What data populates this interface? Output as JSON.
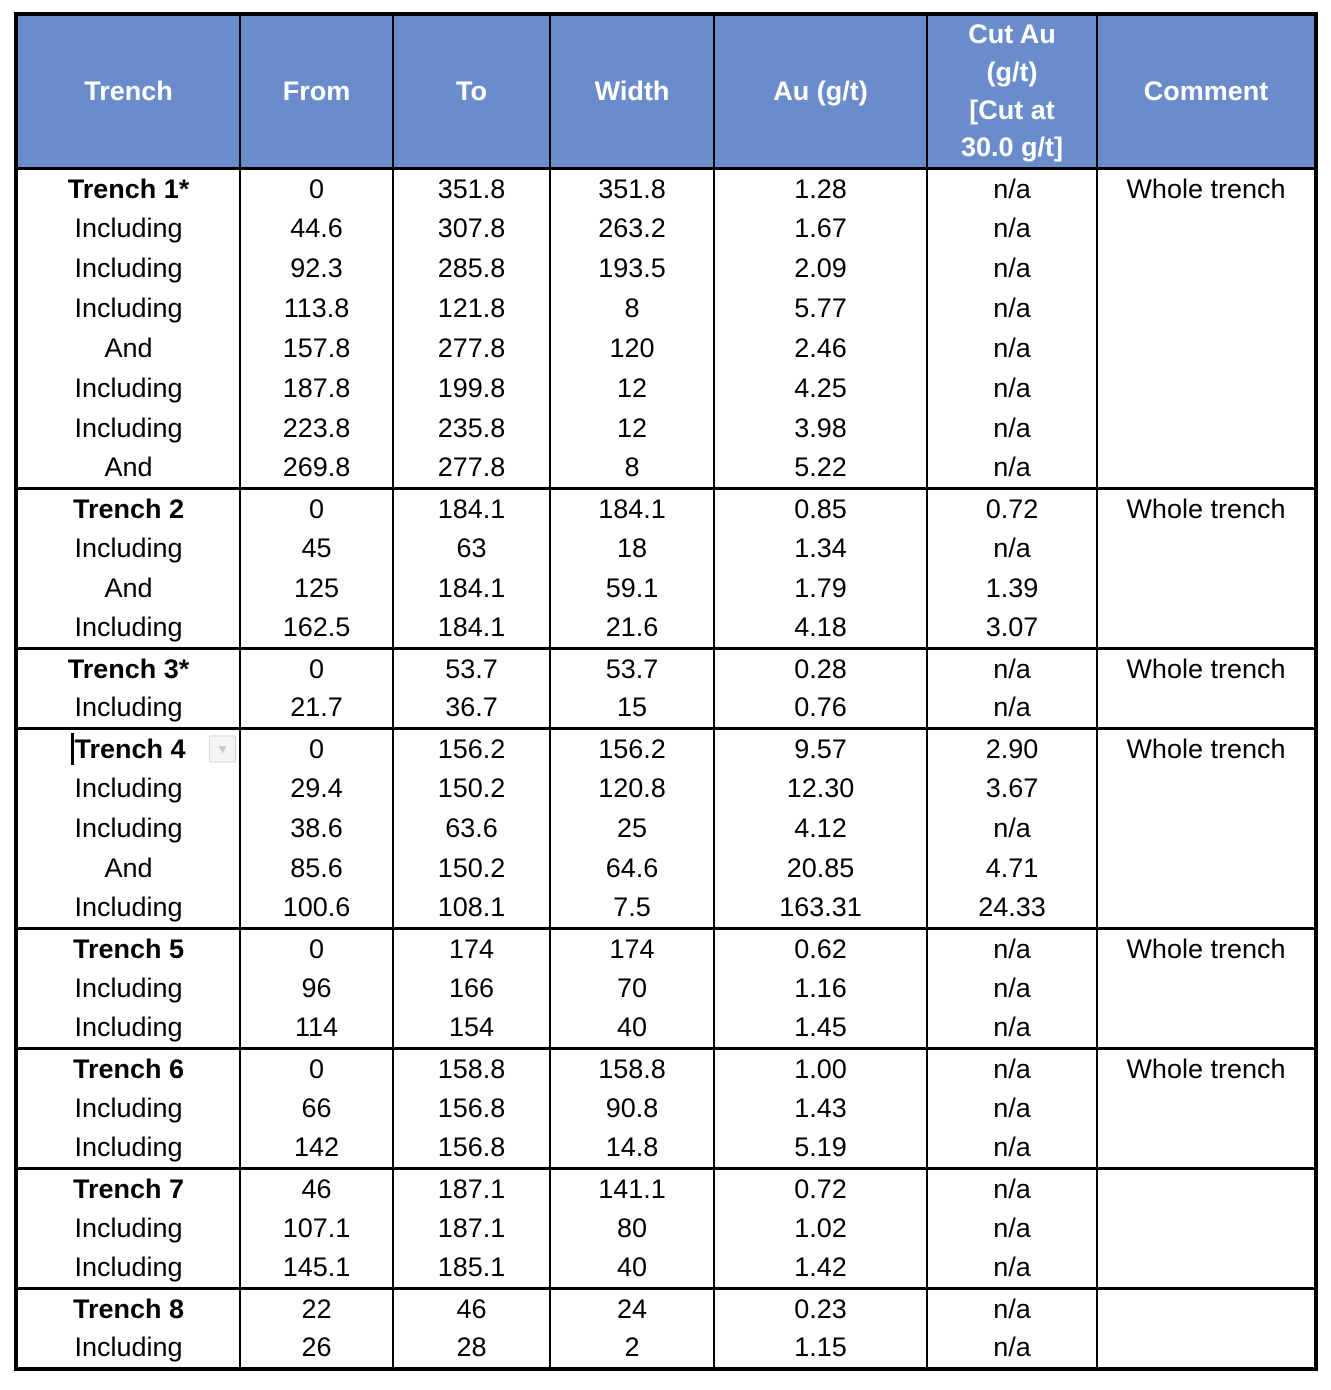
{
  "colors": {
    "header_bg": "#6A8CCB",
    "header_text": "#FFFFFF",
    "border": "#000000"
  },
  "icons": {
    "dropdown_glyph": "▼"
  },
  "table": {
    "header": {
      "trench": "Trench",
      "from": "From",
      "to": "To",
      "width": "Width",
      "au": "Au (g/t)",
      "cut": "Cut Au\n(g/t)\n[Cut at\n30.0 g/t]",
      "comment": "Comment"
    },
    "groups": [
      {
        "rows": [
          {
            "trench": "Trench 1*",
            "bold": true,
            "from": "0",
            "to": "351.8",
            "width": "351.8",
            "au": "1.28",
            "cut": "n/a",
            "comment": "Whole trench"
          },
          {
            "trench": "Including",
            "from": "44.6",
            "to": "307.8",
            "width": "263.2",
            "au": "1.67",
            "cut": "n/a",
            "comment": ""
          },
          {
            "trench": "Including",
            "from": "92.3",
            "to": "285.8",
            "width": "193.5",
            "au": "2.09",
            "cut": "n/a",
            "comment": ""
          },
          {
            "trench": "Including",
            "from": "113.8",
            "to": "121.8",
            "width": "8",
            "au": "5.77",
            "cut": "n/a",
            "comment": ""
          },
          {
            "trench": "And",
            "from": "157.8",
            "to": "277.8",
            "width": "120",
            "au": "2.46",
            "cut": "n/a",
            "comment": ""
          },
          {
            "trench": "Including",
            "from": "187.8",
            "to": "199.8",
            "width": "12",
            "au": "4.25",
            "cut": "n/a",
            "comment": ""
          },
          {
            "trench": "Including",
            "from": "223.8",
            "to": "235.8",
            "width": "12",
            "au": "3.98",
            "cut": "n/a",
            "comment": ""
          },
          {
            "trench": "And",
            "from": "269.8",
            "to": "277.8",
            "width": "8",
            "au": "5.22",
            "cut": "n/a",
            "comment": ""
          }
        ]
      },
      {
        "rows": [
          {
            "trench": "Trench 2",
            "bold": true,
            "from": "0",
            "to": "184.1",
            "width": "184.1",
            "au": "0.85",
            "cut": "0.72",
            "comment": "Whole trench"
          },
          {
            "trench": "Including",
            "from": "45",
            "to": "63",
            "width": "18",
            "au": "1.34",
            "cut": "n/a",
            "comment": ""
          },
          {
            "trench": "And",
            "from": "125",
            "to": "184.1",
            "width": "59.1",
            "au": "1.79",
            "cut": "1.39",
            "comment": ""
          },
          {
            "trench": "Including",
            "from": "162.5",
            "to": "184.1",
            "width": "21.6",
            "au": "4.18",
            "cut": "3.07",
            "comment": ""
          }
        ]
      },
      {
        "rows": [
          {
            "trench": "Trench 3*",
            "bold": true,
            "from": "0",
            "to": "53.7",
            "width": "53.7",
            "au": "0.28",
            "cut": "n/a",
            "comment": "Whole trench"
          },
          {
            "trench": "Including",
            "from": "21.7",
            "to": "36.7",
            "width": "15",
            "au": "0.76",
            "cut": "n/a",
            "comment": ""
          }
        ]
      },
      {
        "rows": [
          {
            "trench": "Trench 4",
            "bold": true,
            "caret": true,
            "dropdown": true,
            "from": "0",
            "to": "156.2",
            "width": "156.2",
            "au": "9.57",
            "cut": "2.90",
            "comment": "Whole trench"
          },
          {
            "trench": "Including",
            "from": "29.4",
            "to": "150.2",
            "width": "120.8",
            "au": "12.30",
            "cut": "3.67",
            "comment": ""
          },
          {
            "trench": "Including",
            "from": "38.6",
            "to": "63.6",
            "width": "25",
            "au": "4.12",
            "cut": "n/a",
            "comment": ""
          },
          {
            "trench": "And",
            "from": "85.6",
            "to": "150.2",
            "width": "64.6",
            "au": "20.85",
            "cut": "4.71",
            "comment": ""
          },
          {
            "trench": "Including",
            "from": "100.6",
            "to": "108.1",
            "width": "7.5",
            "au": "163.31",
            "cut": "24.33",
            "comment": ""
          }
        ]
      },
      {
        "rows": [
          {
            "trench": "Trench 5",
            "bold": true,
            "from": "0",
            "to": "174",
            "width": "174",
            "au": "0.62",
            "cut": "n/a",
            "comment": "Whole trench"
          },
          {
            "trench": "Including",
            "from": "96",
            "to": "166",
            "width": "70",
            "au": "1.16",
            "cut": "n/a",
            "comment": ""
          },
          {
            "trench": "Including",
            "from": "114",
            "to": "154",
            "width": "40",
            "au": "1.45",
            "cut": "n/a",
            "comment": ""
          }
        ]
      },
      {
        "rows": [
          {
            "trench": "Trench 6",
            "bold": true,
            "from": "0",
            "to": "158.8",
            "width": "158.8",
            "au": "1.00",
            "cut": "n/a",
            "comment": "Whole trench"
          },
          {
            "trench": "Including",
            "from": "66",
            "to": "156.8",
            "width": "90.8",
            "au": "1.43",
            "cut": "n/a",
            "comment": ""
          },
          {
            "trench": "Including",
            "from": "142",
            "to": "156.8",
            "width": "14.8",
            "au": "5.19",
            "cut": "n/a",
            "comment": ""
          }
        ]
      },
      {
        "rows": [
          {
            "trench": "Trench 7",
            "bold": true,
            "from": "46",
            "to": "187.1",
            "width": "141.1",
            "au": "0.72",
            "cut": "n/a",
            "comment": ""
          },
          {
            "trench": "Including",
            "from": "107.1",
            "to": "187.1",
            "width": "80",
            "au": "1.02",
            "cut": "n/a",
            "comment": ""
          },
          {
            "trench": "Including",
            "from": "145.1",
            "to": "185.1",
            "width": "40",
            "au": "1.42",
            "cut": "n/a",
            "comment": ""
          }
        ]
      },
      {
        "rows": [
          {
            "trench": "Trench 8",
            "bold": true,
            "from": "22",
            "to": "46",
            "width": "24",
            "au": "0.23",
            "cut": "n/a",
            "comment": ""
          },
          {
            "trench": "Including",
            "from": "26",
            "to": "28",
            "width": "2",
            "au": "1.15",
            "cut": "n/a",
            "comment": ""
          }
        ]
      }
    ]
  }
}
